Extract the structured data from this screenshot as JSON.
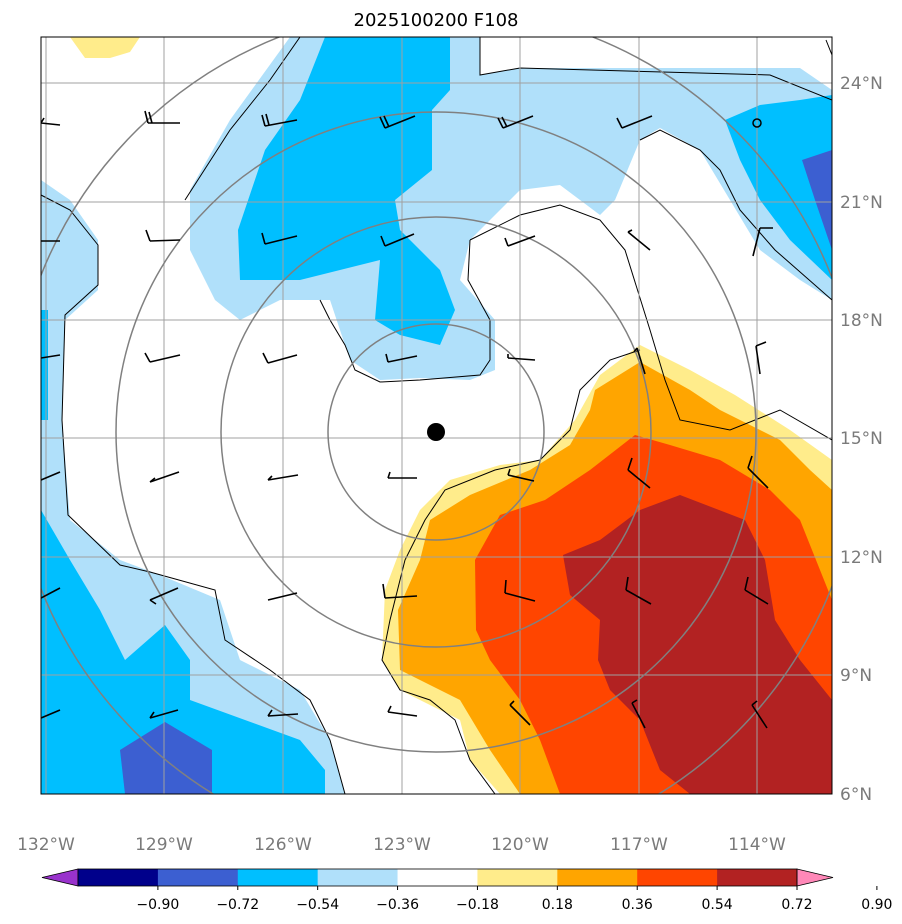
{
  "title": "2025100200 F108",
  "lat_labels": [
    "24°N",
    "21°N",
    "18°N",
    "15°N",
    "12°N",
    "9°N",
    "6°N"
  ],
  "lon_labels": [
    "132°W",
    "129°W",
    "126°W",
    "123°W",
    "120°W",
    "117°W",
    "114°W"
  ],
  "colorbar": {
    "ticks": [
      "−0.90",
      "−0.72",
      "−0.54",
      "−0.36",
      "−0.18",
      "0.18",
      "0.36",
      "0.54",
      "0.72",
      "0.90"
    ],
    "colors": [
      "#9932cc",
      "#00008b",
      "#3c5fd1",
      "#00bfff",
      "#b0e0fa",
      "#ffffff",
      "#ffec8b",
      "#ffa500",
      "#ff4500",
      "#b22222",
      "#ff88b8"
    ]
  },
  "colors": {
    "dark_blue": "#3c5fd1",
    "blue": "#00bfff",
    "light_blue": "#b0e0fa",
    "yellow": "#ffec8b",
    "orange": "#ffa500",
    "red_orange": "#ff4500",
    "dark_red": "#b22222",
    "grid": "#a0a0a0",
    "range_rings": "#808080"
  },
  "center_marker": "storm-center-dot"
}
